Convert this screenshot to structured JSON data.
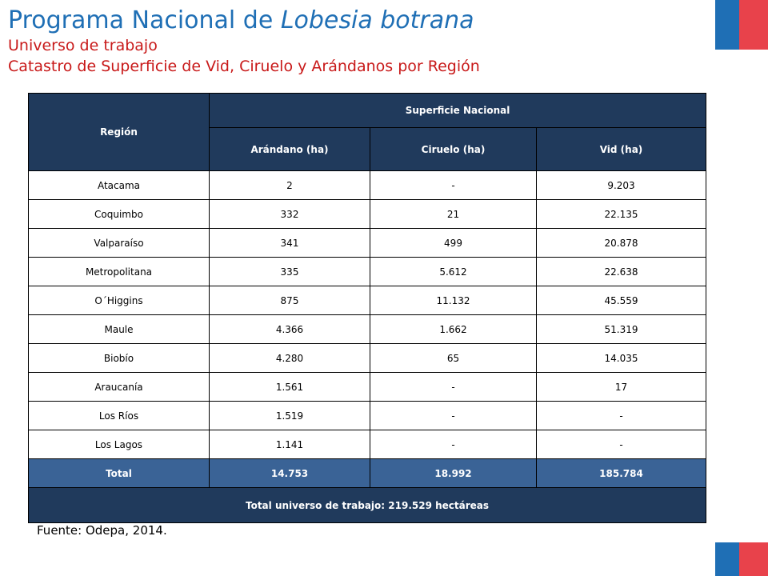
{
  "title": {
    "prefix": "Programa Nacional de ",
    "italic": "Lobesia botrana"
  },
  "subtitle_1": "Universo de trabajo",
  "subtitle_2": "Catastro de Superficie de Vid, Ciruelo y Arándanos por Región",
  "table": {
    "header_region": "Región",
    "header_group": "Superficie Nacional",
    "columns": [
      "Arándano (ha)",
      "Ciruelo (ha)",
      "Vid (ha)"
    ],
    "rows": [
      {
        "region": "Atacama",
        "arandano": "2",
        "ciruelo": "-",
        "vid": "9.203"
      },
      {
        "region": "Coquimbo",
        "arandano": "332",
        "ciruelo": "21",
        "vid": "22.135"
      },
      {
        "region": "Valparaíso",
        "arandano": "341",
        "ciruelo": "499",
        "vid": "20.878"
      },
      {
        "region": "Metropolitana",
        "arandano": "335",
        "ciruelo": "5.612",
        "vid": "22.638"
      },
      {
        "region": "O´Higgins",
        "arandano": "875",
        "ciruelo": "11.132",
        "vid": "45.559"
      },
      {
        "region": "Maule",
        "arandano": "4.366",
        "ciruelo": "1.662",
        "vid": "51.319"
      },
      {
        "region": "Biobío",
        "arandano": "4.280",
        "ciruelo": "65",
        "vid": "14.035"
      },
      {
        "region": "Araucanía",
        "arandano": "1.561",
        "ciruelo": "-",
        "vid": "17"
      },
      {
        "region": "Los Ríos",
        "arandano": "1.519",
        "ciruelo": "-",
        "vid": "-"
      },
      {
        "region": "Los Lagos",
        "arandano": "1.141",
        "ciruelo": "-",
        "vid": "-"
      }
    ],
    "total": {
      "label": "Total",
      "arandano": "14.753",
      "ciruelo": "18.992",
      "vid": "185.784"
    },
    "grand_total": "Total universo de trabajo: 219.529 hectáreas"
  },
  "source": "Fuente: Odepa, 2014.",
  "colors": {
    "title": "#1f6fb5",
    "subtitle": "#c81919",
    "header_bg": "#203a5c",
    "total_bg": "#3a6396",
    "flag_blue": "#1f6fb5",
    "flag_red": "#e8424b"
  }
}
